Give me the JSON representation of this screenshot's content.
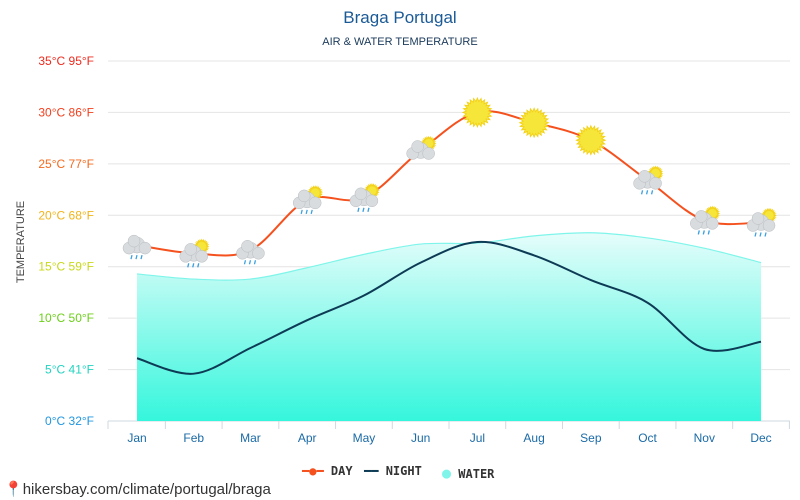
{
  "chart_data": {
    "type": "line",
    "title": "Braga Portugal",
    "subtitle": "AIR & WATER TEMPERATURE",
    "ylabel": "TEMPERATURE",
    "ylim": [
      0,
      35
    ],
    "grid": true,
    "legend_placement": "bottom",
    "yticks": [
      "0°C 32°F",
      "5°C 41°F",
      "10°C 50°F",
      "15°C 59°F",
      "20°C 68°F",
      "25°C 77°F",
      "30°C 86°F",
      "35°C 95°F"
    ],
    "ytick_colors": [
      "#2196e0",
      "#22d3c0",
      "#6ccf1a",
      "#c8d81a",
      "#f2b41c",
      "#f46a1e",
      "#f2401e",
      "#ee2a1e"
    ],
    "categories": [
      "Jan",
      "Feb",
      "Mar",
      "Apr",
      "May",
      "Jun",
      "Jul",
      "Aug",
      "Sep",
      "Oct",
      "Nov",
      "Dec"
    ],
    "series": [
      {
        "name": "DAY",
        "color": "#f4511e",
        "values": [
          17.1,
          16.3,
          16.6,
          21.5,
          21.7,
          26.3,
          30.0,
          29.0,
          27.3,
          23.4,
          19.5,
          19.3
        ]
      },
      {
        "name": "NIGHT",
        "color": "#0d3b55",
        "values": [
          6.1,
          4.6,
          7.1,
          9.8,
          12.2,
          15.4,
          17.4,
          16.1,
          13.7,
          11.5,
          7.0,
          7.7
        ]
      },
      {
        "name": "WATER",
        "color": "#7ff5ea",
        "values": [
          14.3,
          13.8,
          13.8,
          14.9,
          16.2,
          17.2,
          17.3,
          18.0,
          18.3,
          17.8,
          16.8,
          15.4
        ]
      }
    ],
    "weather_icons": [
      "rain-cloud-icon",
      "rain-cloud-sun-icon",
      "rain-cloud-icon",
      "rain-cloud-sun-icon",
      "rain-cloud-sun-icon",
      "cloud-sun-icon",
      "sun-icon",
      "sun-icon",
      "sun-icon",
      "rain-cloud-sun-icon",
      "rain-cloud-sun-icon",
      "rain-cloud-sun-icon"
    ]
  },
  "legend": {
    "day": "DAY",
    "night": "NIGHT",
    "water": "WATER"
  },
  "footer": {
    "url": "hikersbay.com/climate/portugal/braga",
    "icon": "location-pin-icon"
  }
}
